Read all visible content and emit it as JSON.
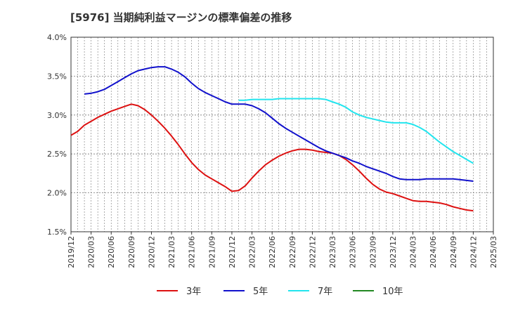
{
  "chart_data": {
    "type": "line",
    "title": "[5976]  当期純利益マージンの標準偏差の推移",
    "xlabel": "",
    "ylabel": "",
    "ylim": [
      1.5,
      4.0
    ],
    "y_ticks": [
      "1.5%",
      "2.0%",
      "2.5%",
      "3.0%",
      "3.5%",
      "4.0%"
    ],
    "x_ticks": [
      "2019/12",
      "2020/03",
      "2020/06",
      "2020/09",
      "2020/12",
      "2021/03",
      "2021/06",
      "2021/09",
      "2021/12",
      "2022/03",
      "2022/06",
      "2022/09",
      "2022/12",
      "2023/03",
      "2023/06",
      "2023/09",
      "2023/12",
      "2024/03",
      "2024/06",
      "2024/09",
      "2024/12",
      "2025/03"
    ],
    "grid": true,
    "legend_position": "bottom",
    "series": [
      {
        "name": "3年",
        "color": "#dd1111",
        "points": [
          [
            "2019/12",
            2.74
          ],
          [
            "2020/01",
            2.79
          ],
          [
            "2020/02",
            2.87
          ],
          [
            "2020/03",
            2.92
          ],
          [
            "2020/04",
            2.97
          ],
          [
            "2020/05",
            3.01
          ],
          [
            "2020/06",
            3.05
          ],
          [
            "2020/07",
            3.08
          ],
          [
            "2020/08",
            3.11
          ],
          [
            "2020/09",
            3.14
          ],
          [
            "2020/10",
            3.12
          ],
          [
            "2020/11",
            3.07
          ],
          [
            "2020/12",
            3.0
          ],
          [
            "2021/01",
            2.92
          ],
          [
            "2021/02",
            2.83
          ],
          [
            "2021/03",
            2.73
          ],
          [
            "2021/04",
            2.62
          ],
          [
            "2021/05",
            2.5
          ],
          [
            "2021/06",
            2.39
          ],
          [
            "2021/07",
            2.3
          ],
          [
            "2021/08",
            2.23
          ],
          [
            "2021/09",
            2.18
          ],
          [
            "2021/10",
            2.13
          ],
          [
            "2021/11",
            2.08
          ],
          [
            "2021/12",
            2.02
          ],
          [
            "2022/01",
            2.03
          ],
          [
            "2022/02",
            2.09
          ],
          [
            "2022/03",
            2.19
          ],
          [
            "2022/04",
            2.28
          ],
          [
            "2022/05",
            2.36
          ],
          [
            "2022/06",
            2.42
          ],
          [
            "2022/07",
            2.47
          ],
          [
            "2022/08",
            2.51
          ],
          [
            "2022/09",
            2.54
          ],
          [
            "2022/10",
            2.56
          ],
          [
            "2022/11",
            2.56
          ],
          [
            "2022/12",
            2.55
          ],
          [
            "2023/01",
            2.53
          ],
          [
            "2023/02",
            2.52
          ],
          [
            "2023/03",
            2.51
          ],
          [
            "2023/04",
            2.48
          ],
          [
            "2023/05",
            2.43
          ],
          [
            "2023/06",
            2.36
          ],
          [
            "2023/07",
            2.28
          ],
          [
            "2023/08",
            2.19
          ],
          [
            "2023/09",
            2.11
          ],
          [
            "2023/10",
            2.05
          ],
          [
            "2023/11",
            2.01
          ],
          [
            "2023/12",
            1.99
          ],
          [
            "2024/01",
            1.96
          ],
          [
            "2024/02",
            1.93
          ],
          [
            "2024/03",
            1.9
          ],
          [
            "2024/04",
            1.89
          ],
          [
            "2024/05",
            1.89
          ],
          [
            "2024/06",
            1.88
          ],
          [
            "2024/07",
            1.87
          ],
          [
            "2024/08",
            1.85
          ],
          [
            "2024/09",
            1.82
          ],
          [
            "2024/10",
            1.8
          ],
          [
            "2024/11",
            1.78
          ],
          [
            "2024/12",
            1.77
          ]
        ]
      },
      {
        "name": "5年",
        "color": "#1111cc",
        "points": [
          [
            "2020/02",
            3.27
          ],
          [
            "2020/03",
            3.28
          ],
          [
            "2020/04",
            3.3
          ],
          [
            "2020/05",
            3.33
          ],
          [
            "2020/06",
            3.38
          ],
          [
            "2020/07",
            3.43
          ],
          [
            "2020/08",
            3.48
          ],
          [
            "2020/09",
            3.53
          ],
          [
            "2020/10",
            3.57
          ],
          [
            "2020/11",
            3.59
          ],
          [
            "2020/12",
            3.61
          ],
          [
            "2021/01",
            3.62
          ],
          [
            "2021/02",
            3.62
          ],
          [
            "2021/03",
            3.59
          ],
          [
            "2021/04",
            3.55
          ],
          [
            "2021/05",
            3.49
          ],
          [
            "2021/06",
            3.41
          ],
          [
            "2021/07",
            3.34
          ],
          [
            "2021/08",
            3.29
          ],
          [
            "2021/09",
            3.25
          ],
          [
            "2021/10",
            3.21
          ],
          [
            "2021/11",
            3.17
          ],
          [
            "2021/12",
            3.14
          ],
          [
            "2022/01",
            3.14
          ],
          [
            "2022/02",
            3.14
          ],
          [
            "2022/03",
            3.12
          ],
          [
            "2022/04",
            3.08
          ],
          [
            "2022/05",
            3.03
          ],
          [
            "2022/06",
            2.96
          ],
          [
            "2022/07",
            2.89
          ],
          [
            "2022/08",
            2.83
          ],
          [
            "2022/09",
            2.78
          ],
          [
            "2022/10",
            2.73
          ],
          [
            "2022/11",
            2.68
          ],
          [
            "2022/12",
            2.63
          ],
          [
            "2023/01",
            2.58
          ],
          [
            "2023/02",
            2.54
          ],
          [
            "2023/03",
            2.51
          ],
          [
            "2023/04",
            2.48
          ],
          [
            "2023/05",
            2.45
          ],
          [
            "2023/06",
            2.41
          ],
          [
            "2023/07",
            2.38
          ],
          [
            "2023/08",
            2.34
          ],
          [
            "2023/09",
            2.31
          ],
          [
            "2023/10",
            2.28
          ],
          [
            "2023/11",
            2.25
          ],
          [
            "2023/12",
            2.21
          ],
          [
            "2024/01",
            2.18
          ],
          [
            "2024/02",
            2.17
          ],
          [
            "2024/03",
            2.17
          ],
          [
            "2024/04",
            2.17
          ],
          [
            "2024/05",
            2.18
          ],
          [
            "2024/06",
            2.18
          ],
          [
            "2024/07",
            2.18
          ],
          [
            "2024/08",
            2.18
          ],
          [
            "2024/09",
            2.18
          ],
          [
            "2024/10",
            2.17
          ],
          [
            "2024/11",
            2.16
          ],
          [
            "2024/12",
            2.15
          ]
        ]
      },
      {
        "name": "7年",
        "color": "#22e5ee",
        "points": [
          [
            "2022/01",
            3.19
          ],
          [
            "2022/02",
            3.19
          ],
          [
            "2022/03",
            3.2
          ],
          [
            "2022/04",
            3.2
          ],
          [
            "2022/05",
            3.2
          ],
          [
            "2022/06",
            3.2
          ],
          [
            "2022/07",
            3.21
          ],
          [
            "2022/08",
            3.21
          ],
          [
            "2022/09",
            3.21
          ],
          [
            "2022/10",
            3.21
          ],
          [
            "2022/11",
            3.21
          ],
          [
            "2022/12",
            3.21
          ],
          [
            "2023/01",
            3.21
          ],
          [
            "2023/02",
            3.2
          ],
          [
            "2023/03",
            3.17
          ],
          [
            "2023/04",
            3.14
          ],
          [
            "2023/05",
            3.1
          ],
          [
            "2023/06",
            3.04
          ],
          [
            "2023/07",
            3.0
          ],
          [
            "2023/08",
            2.97
          ],
          [
            "2023/09",
            2.95
          ],
          [
            "2023/10",
            2.93
          ],
          [
            "2023/11",
            2.91
          ],
          [
            "2023/12",
            2.9
          ],
          [
            "2024/01",
            2.9
          ],
          [
            "2024/02",
            2.9
          ],
          [
            "2024/03",
            2.88
          ],
          [
            "2024/04",
            2.84
          ],
          [
            "2024/05",
            2.79
          ],
          [
            "2024/06",
            2.72
          ],
          [
            "2024/07",
            2.65
          ],
          [
            "2024/08",
            2.59
          ],
          [
            "2024/09",
            2.53
          ],
          [
            "2024/10",
            2.48
          ],
          [
            "2024/11",
            2.43
          ],
          [
            "2024/12",
            2.38
          ]
        ]
      },
      {
        "name": "10年",
        "color": "#228822",
        "points": []
      }
    ]
  }
}
